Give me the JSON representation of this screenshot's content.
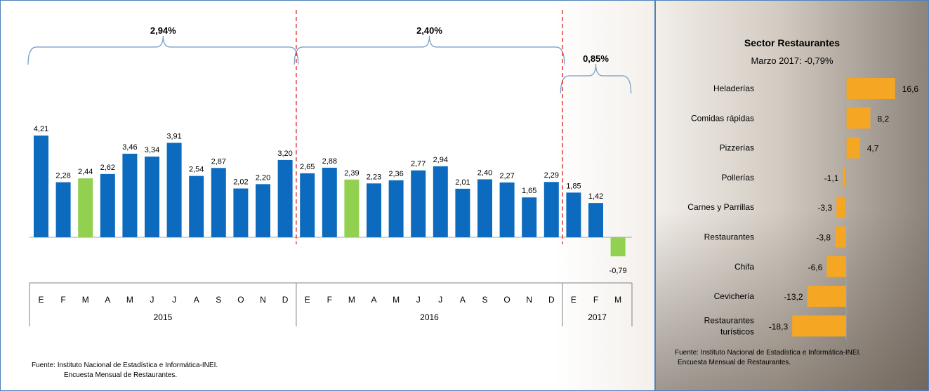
{
  "colors": {
    "bar_blue": "#0c6bbf",
    "bar_green": "#92d050",
    "bar_orange": "#f5a623",
    "brace": "#6f9bc8",
    "divider_red": "#e0201f",
    "text": "#000000"
  },
  "sources": {
    "line1": "Fuente: Instituto Nacional de Estadística e Informática-INEI.",
    "line2": "Encuesta Mensual de Restaurantes."
  },
  "chart_data": [
    {
      "type": "bar",
      "title": "",
      "xlabel": "",
      "ylabel": "",
      "categories": [
        "E",
        "F",
        "M",
        "A",
        "M",
        "J",
        "J",
        "A",
        "S",
        "O",
        "N",
        "D",
        "E",
        "F",
        "M",
        "A",
        "M",
        "J",
        "J",
        "A",
        "S",
        "O",
        "N",
        "D",
        "E",
        "F",
        "M"
      ],
      "years": [
        {
          "label": "2015",
          "count": 12,
          "summary": "2,94%"
        },
        {
          "label": "2016",
          "count": 12,
          "summary": "2,40%"
        },
        {
          "label": "2017",
          "count": 3,
          "summary": "0,85%"
        }
      ],
      "values": [
        4.21,
        2.28,
        2.44,
        2.62,
        3.46,
        3.34,
        3.91,
        2.54,
        2.87,
        2.02,
        2.2,
        3.2,
        2.65,
        2.88,
        2.39,
        2.23,
        2.36,
        2.77,
        2.94,
        2.01,
        2.4,
        2.27,
        1.65,
        2.29,
        1.85,
        1.42,
        -0.79
      ],
      "labels": [
        "4,21",
        "2,28",
        "2,44",
        "2,62",
        "3,46",
        "3,34",
        "3,91",
        "2,54",
        "2,87",
        "2,02",
        "2,20",
        "3,20",
        "2,65",
        "2,88",
        "2,39",
        "2,23",
        "2,36",
        "2,77",
        "2,94",
        "2,01",
        "2,40",
        "2,27",
        "1,65",
        "2,29",
        "1,85",
        "1,42",
        "-0,79"
      ],
      "highlighted": [
        2,
        14,
        26
      ],
      "ylim": [
        -1.0,
        4.5
      ],
      "grid": false
    },
    {
      "type": "bar",
      "orientation": "horizontal",
      "title": "Sector Restaurantes",
      "subtitle": "Marzo  2017: -0,79%",
      "categories": [
        "Heladerías",
        "Comidas rápidas",
        "Pizzerías",
        "Pollerías",
        "Carnes y Parrillas",
        "Restaurantes",
        "Chifa",
        "Cevichería",
        "Restaurantes turísticos"
      ],
      "values": [
        16.6,
        8.2,
        4.7,
        -1.1,
        -3.3,
        -3.8,
        -6.6,
        -13.2,
        -18.3
      ],
      "labels": [
        "16,6",
        "8,2",
        "4,7",
        "-1,1",
        "-3,3",
        "-3,8",
        "-6,6",
        "-13,2",
        "-18,3"
      ],
      "xlim": [
        -20,
        18
      ],
      "grid": false
    }
  ]
}
